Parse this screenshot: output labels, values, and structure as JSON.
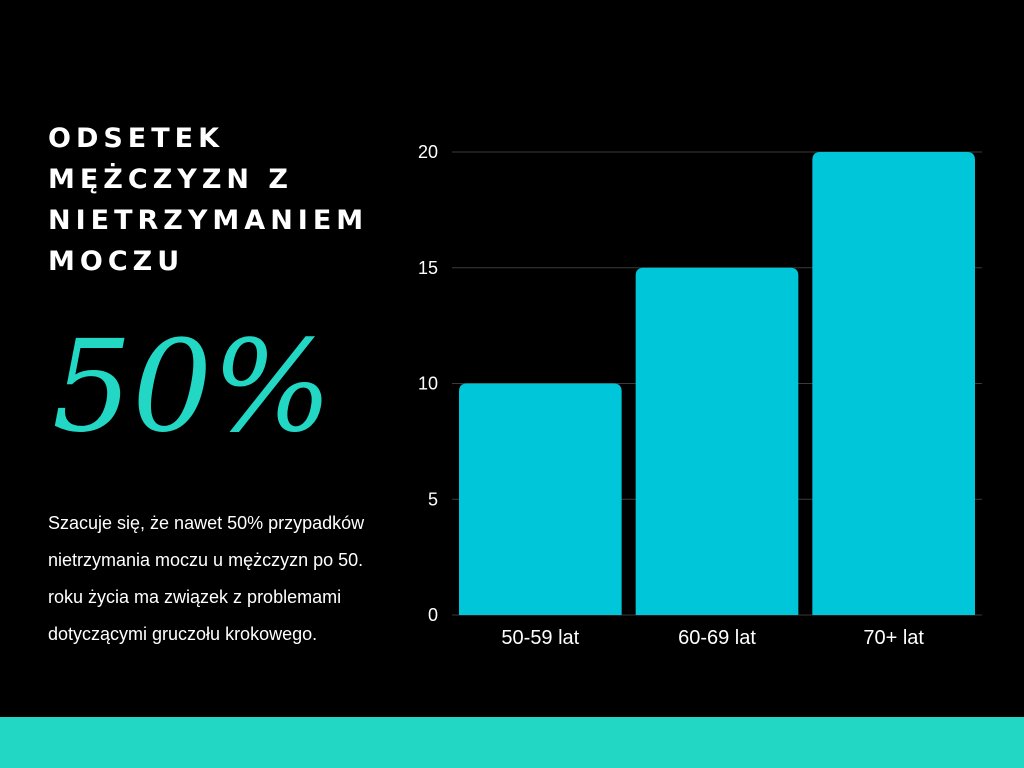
{
  "headline": {
    "lines": [
      "ODSETEK",
      "MĘŻCZYZN Z",
      "NIETRZYMANIEM",
      "MOCZU"
    ]
  },
  "big_stat": "50%",
  "description": {
    "lines": [
      "Szacuje się, że nawet 50% przypadków",
      "nietrzymania moczu u mężczyzn po 50.",
      "roku życia ma związek z problemami",
      "dotyczącymi gruczołu krokowego."
    ]
  },
  "colors": {
    "background": "#000000",
    "accent": "#22d8c4",
    "bar": "#00c6da",
    "text": "#ffffff",
    "grid": "#3a3a3a"
  },
  "chart_data": {
    "type": "bar",
    "categories": [
      "50-59 lat",
      "60-69 lat",
      "70+ lat"
    ],
    "values": [
      10,
      15,
      20
    ],
    "ylim": [
      0,
      20
    ],
    "yticks": [
      "0",
      "5",
      "10",
      "15",
      "20"
    ],
    "grid": true,
    "title": "",
    "xlabel": "",
    "ylabel": ""
  }
}
